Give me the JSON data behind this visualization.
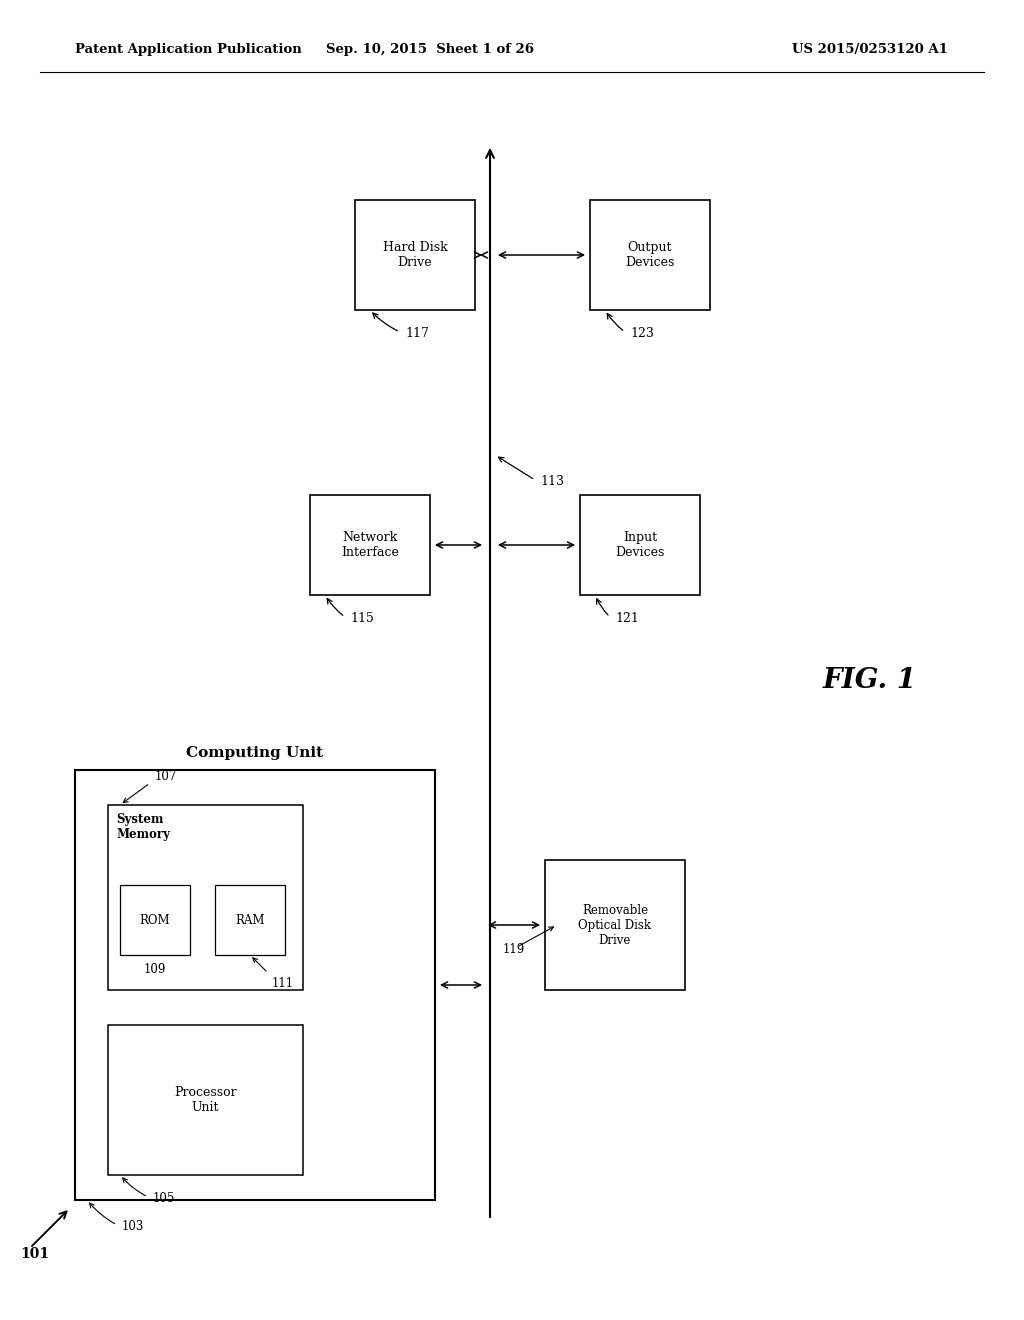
{
  "bg_color": "#ffffff",
  "header_left": "Patent Application Publication",
  "header_mid": "Sep. 10, 2015  Sheet 1 of 26",
  "header_right": "US 2015/0253120 A1",
  "fig_label": "FIG. 1",
  "text_color": "#000000"
}
